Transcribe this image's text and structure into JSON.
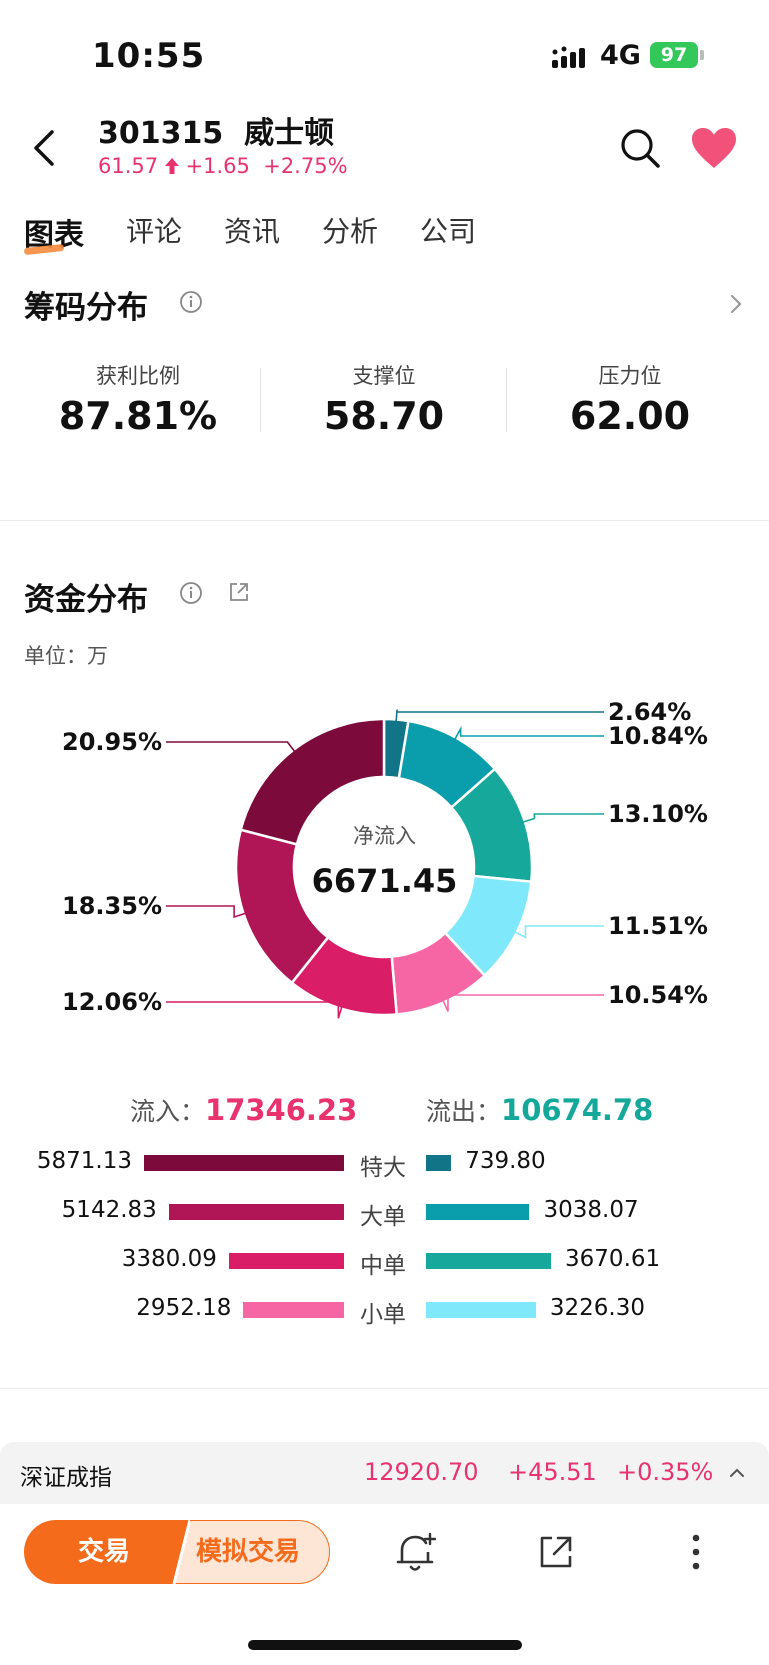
{
  "status_bar": {
    "time": "10:55",
    "network": "4G",
    "battery": "97"
  },
  "header": {
    "code": "301315",
    "name": "威士顿",
    "price": "61.57",
    "change": "+1.65",
    "change_pct": "+2.75%"
  },
  "tabs": [
    "图表",
    "评论",
    "资讯",
    "分析",
    "公司"
  ],
  "chips": {
    "title": "筹码分布",
    "profit_label": "获利比例",
    "profit_value": "87.81%",
    "support_label": "支撑位",
    "support_value": "58.70",
    "pressure_label": "压力位",
    "pressure_value": "62.00"
  },
  "funds": {
    "title": "资金分布",
    "unit": "单位：万",
    "center_label": "净流入",
    "center_value": "6671.45",
    "inflow_label": "流入：",
    "inflow_value": "17346.23",
    "outflow_label": "流出：",
    "outflow_value": "10674.78"
  },
  "chart_data": {
    "type": "pie",
    "slices": [
      {
        "label": "2.64%",
        "value": 2.64,
        "color": "#127487"
      },
      {
        "label": "10.84%",
        "value": 10.84,
        "color": "#0a9dab"
      },
      {
        "label": "13.10%",
        "value": 13.1,
        "color": "#16a89a"
      },
      {
        "label": "11.51%",
        "value": 11.51,
        "color": "#7fe8fb"
      },
      {
        "label": "10.54%",
        "value": 10.54,
        "color": "#f766a4"
      },
      {
        "label": "12.06%",
        "value": 12.06,
        "color": "#d91d67"
      },
      {
        "label": "18.35%",
        "value": 18.35,
        "color": "#b01556"
      },
      {
        "label": "20.95%",
        "value": 20.95,
        "color": "#7c0a3b"
      }
    ]
  },
  "flow_rows": [
    {
      "category": "特大",
      "inflow": "5871.13",
      "outflow": "739.80",
      "in_num": 5871.13,
      "out_num": 739.8,
      "in_color": "#7c0a3b",
      "out_color": "#127487"
    },
    {
      "category": "大单",
      "inflow": "5142.83",
      "outflow": "3038.07",
      "in_num": 5142.83,
      "out_num": 3038.07,
      "in_color": "#b01556",
      "out_color": "#0a9dab"
    },
    {
      "category": "中单",
      "inflow": "3380.09",
      "outflow": "3670.61",
      "in_num": 3380.09,
      "out_num": 3670.61,
      "in_color": "#d91d67",
      "out_color": "#16a89a"
    },
    {
      "category": "小单",
      "inflow": "2952.18",
      "outflow": "3226.30",
      "in_num": 2952.18,
      "out_num": 3226.3,
      "in_color": "#f766a4",
      "out_color": "#7fe8fb"
    }
  ],
  "index": {
    "name": "深证成指",
    "value": "12920.70",
    "change": "+45.51",
    "change_pct": "+0.35%"
  },
  "bottom": {
    "trade": "交易",
    "sim_trade": "模拟交易"
  },
  "colors": {
    "up": "#e8336f",
    "down": "#14a89a",
    "accent": "#f46b1c"
  }
}
